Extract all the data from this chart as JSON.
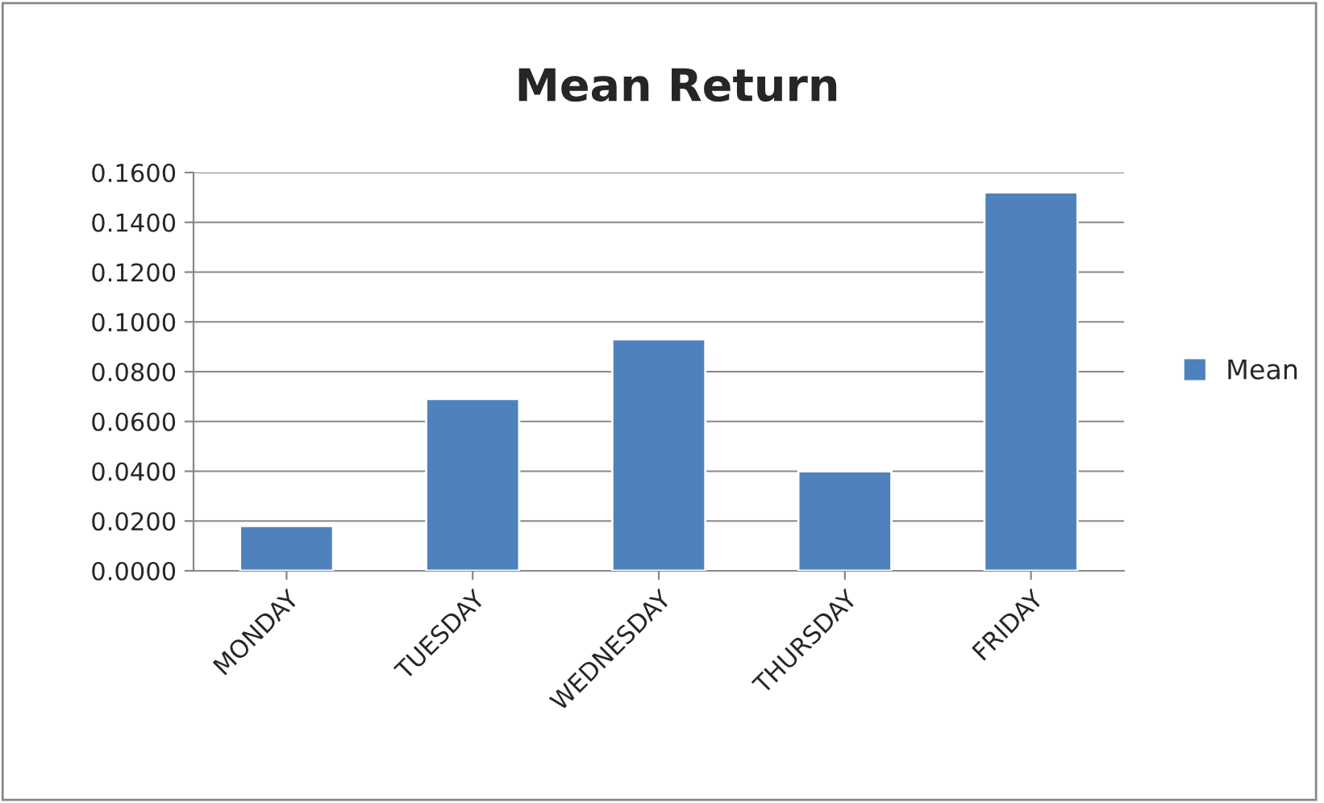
{
  "chart_data": {
    "type": "bar",
    "title": "Mean Return",
    "categories": [
      "MONDAY",
      "TUESDAY",
      "WEDNESDAY",
      "THURSDAY",
      "FRIDAY"
    ],
    "series": [
      {
        "name": "Mean",
        "color": "#4f81bd",
        "values": [
          0.018,
          0.069,
          0.093,
          0.04,
          0.152
        ]
      }
    ],
    "ylim": [
      0,
      0.16
    ],
    "yticks": [
      {
        "value": 0,
        "label": "0.0000"
      },
      {
        "value": 0.02,
        "label": "0.0200"
      },
      {
        "value": 0.04,
        "label": "0.0400"
      },
      {
        "value": 0.06,
        "label": "0.0600"
      },
      {
        "value": 0.08,
        "label": "0.0800"
      },
      {
        "value": 0.1,
        "label": "0.1000"
      },
      {
        "value": 0.12,
        "label": "0.1200"
      },
      {
        "value": 0.14,
        "label": "0.1400"
      },
      {
        "value": 0.16,
        "label": "0.1600"
      }
    ],
    "grid": "y",
    "legend": "right"
  }
}
